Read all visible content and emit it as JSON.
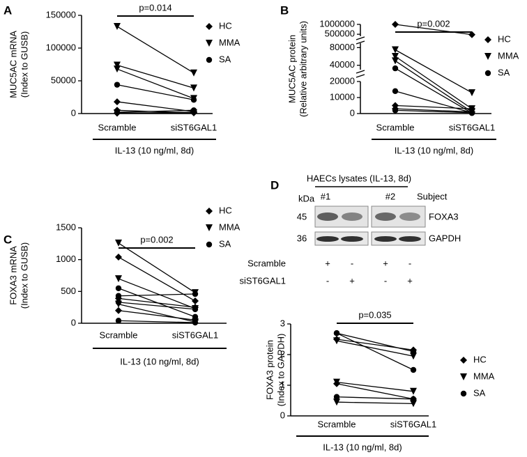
{
  "chart_data": [
    {
      "type": "paired",
      "label": "A",
      "ylabel": [
        "MUC5AC mRNA",
        "(Index to  GUSB)"
      ],
      "categories": [
        "Scramble",
        "siST6GAL1"
      ],
      "xlabel": "IL-13 (10 ng/ml, 8d)",
      "annotation": "p=0.014",
      "ylim": [
        0,
        150000
      ],
      "yticks": [
        0,
        50000,
        100000,
        150000
      ],
      "color": "#000000",
      "legend": [
        {
          "name": "HC",
          "marker": "diamond"
        },
        {
          "name": "MMA",
          "marker": "triangle-down"
        },
        {
          "name": "SA",
          "marker": "circle"
        }
      ],
      "series": [
        {
          "group": "MMA",
          "values": [
            133000,
            62000
          ]
        },
        {
          "group": "MMA",
          "values": [
            74000,
            39000
          ]
        },
        {
          "group": "MMA",
          "values": [
            68000,
            23000
          ]
        },
        {
          "group": "SA",
          "values": [
            44000,
            21000
          ]
        },
        {
          "group": "HC",
          "values": [
            18000,
            3000
          ]
        },
        {
          "group": "HC",
          "values": [
            5000,
            1000
          ]
        },
        {
          "group": "SA",
          "values": [
            2000,
            5000
          ]
        },
        {
          "group": "MMA",
          "values": [
            1000,
            1000
          ]
        },
        {
          "group": "HC",
          "values": [
            500,
            2000
          ]
        }
      ]
    },
    {
      "type": "paired",
      "label": "B",
      "ylabel": [
        "MUC5AC protein",
        "(Relative arbitrary units)"
      ],
      "categories": [
        "Scramble",
        "siST6GAL1"
      ],
      "xlabel": "IL-13 (10 ng/ml, 8d)",
      "annotation": "p=0.002",
      "ylim": [
        0,
        1000000
      ],
      "y_segments": [
        [
          0,
          20000
        ],
        [
          30000,
          90000
        ],
        [
          400000,
          1000000
        ]
      ],
      "yticks": [
        0,
        10000,
        20000,
        40000,
        80000,
        500000,
        1000000
      ],
      "color": "#000000",
      "legend": [
        {
          "name": "HC",
          "marker": "diamond"
        },
        {
          "name": "MMA",
          "marker": "triangle-down"
        },
        {
          "name": "SA",
          "marker": "circle"
        }
      ],
      "series": [
        {
          "group": "HC",
          "values": [
            1000000,
            480000
          ]
        },
        {
          "group": "MMA",
          "values": [
            75000,
            13000
          ]
        },
        {
          "group": "MMA",
          "values": [
            60000,
            3000
          ]
        },
        {
          "group": "MMA",
          "values": [
            50000,
            1000
          ]
        },
        {
          "group": "SA",
          "values": [
            33000,
            300
          ]
        },
        {
          "group": "SA",
          "values": [
            14000,
            500
          ]
        },
        {
          "group": "HC",
          "values": [
            5000,
            3000
          ]
        },
        {
          "group": "HC",
          "values": [
            3000,
            1000
          ]
        },
        {
          "group": "SA",
          "values": [
            2000,
            500
          ]
        }
      ]
    },
    {
      "type": "paired",
      "label": "C",
      "ylabel": [
        "FOXA3 mRNA",
        "(Index to GUSB)"
      ],
      "categories": [
        "Scramble",
        "siST6GAL1"
      ],
      "xlabel": "IL-13 (10 ng/ml, 8d)",
      "annotation": "p=0.002",
      "ylim": [
        0,
        1500
      ],
      "yticks": [
        0,
        500,
        1000,
        1500
      ],
      "color": "#000000",
      "legend": [
        {
          "name": "HC",
          "marker": "diamond"
        },
        {
          "name": "MMA",
          "marker": "triangle-down"
        },
        {
          "name": "SA",
          "marker": "circle"
        }
      ],
      "series": [
        {
          "group": "MMA",
          "values": [
            1260,
            480
          ]
        },
        {
          "group": "HC",
          "values": [
            1040,
            350
          ]
        },
        {
          "group": "MMA",
          "values": [
            700,
            230
          ]
        },
        {
          "group": "SA",
          "values": [
            550,
            100
          ]
        },
        {
          "group": "SA",
          "values": [
            430,
            460
          ]
        },
        {
          "group": "HC",
          "values": [
            390,
            250
          ]
        },
        {
          "group": "SA",
          "values": [
            330,
            220
          ]
        },
        {
          "group": "MMA",
          "values": [
            300,
            20
          ]
        },
        {
          "group": "HC",
          "values": [
            200,
            50
          ]
        },
        {
          "group": "SA",
          "values": [
            40,
            10
          ]
        }
      ]
    },
    {
      "type": "paired",
      "label": "D",
      "ylabel": [
        "FOXA3  protein",
        "(Index to GAPDH)"
      ],
      "categories": [
        "Scramble",
        "siST6GAL1"
      ],
      "xlabel": "IL-13 (10 ng/ml, 8d)",
      "annotation": "p=0.035",
      "ylim": [
        0,
        3
      ],
      "yticks": [
        0,
        1,
        2,
        3
      ],
      "color": "#000000",
      "legend": [
        {
          "name": "HC",
          "marker": "diamond"
        },
        {
          "name": "MMA",
          "marker": "triangle-down"
        },
        {
          "name": "SA",
          "marker": "circle"
        }
      ],
      "series": [
        {
          "group": "SA",
          "values": [
            2.7,
            2.1
          ]
        },
        {
          "group": "SA",
          "values": [
            2.7,
            1.5
          ]
        },
        {
          "group": "HC",
          "values": [
            2.5,
            2.15
          ]
        },
        {
          "group": "MMA",
          "values": [
            2.45,
            1.95
          ]
        },
        {
          "group": "MMA",
          "values": [
            1.1,
            0.8
          ]
        },
        {
          "group": "HC",
          "values": [
            1.05,
            0.55
          ]
        },
        {
          "group": "SA",
          "values": [
            0.62,
            0.55
          ]
        },
        {
          "group": "MMA",
          "values": [
            0.45,
            0.4
          ]
        }
      ]
    }
  ],
  "blot": {
    "header": "HAECs lysates  (IL-13, 8d)",
    "lanes": [
      "#1",
      "#2"
    ],
    "subject_label": "Subject",
    "kda_label": "kDa",
    "sizes": [
      "45",
      "36"
    ],
    "bands": [
      "FOXA3",
      "GAPDH"
    ],
    "conditions": [
      {
        "name": "Scramble",
        "signs": [
          "+",
          "-",
          "+",
          "-"
        ]
      },
      {
        "name": "siST6GAL1",
        "signs": [
          "-",
          "+",
          "-",
          "+"
        ]
      }
    ]
  }
}
